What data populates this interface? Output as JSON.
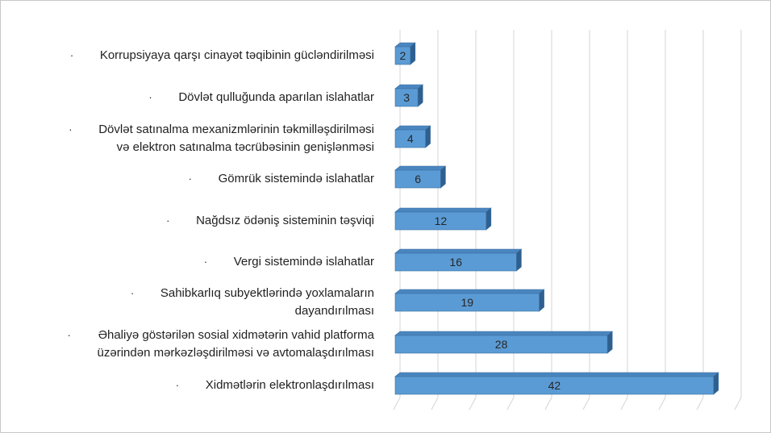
{
  "chart_data": {
    "type": "bar",
    "orientation": "horizontal",
    "style": "3d-clustered",
    "categories": [
      "Korrupsiyaya qarşı cinayət təqibinin gücləndirilməsi",
      "Dövlət qulluğunda aparılan islahatlar",
      "Dövlət satınalma mexanizmlərinin təkmilləşdirilməsi və elektron satınalma təcrübəsinin genişlənməsi",
      "Gömrük sistemində islahatlar",
      "Nağdsız ödəniş sisteminin təşviqi",
      "Vergi sistemində islahatlar",
      "Sahibkarlıq subyektlərində yoxlamaların dayandırılması",
      "Əhaliyə göstərilən sosial xidmətərin vahid platforma üzərindən mərkəzləşdirilməsi və avtomalaşdırılması",
      "Xidmətlərin elektronlaşdırılması"
    ],
    "label_lines": [
      [
        "Korrupsiyaya qarşı cinayət təqibinin gücləndirilməsi"
      ],
      [
        "Dövlət qulluğunda aparılan islahatlar"
      ],
      [
        "Dövlət satınalma mexanizmlərinin təkmilləşdirilməsi",
        "və elektron satınalma təcrübəsinin genişlənməsi"
      ],
      [
        "Gömrük sistemində islahatlar"
      ],
      [
        "Nağdsız ödəniş sisteminin təşviqi"
      ],
      [
        "Vergi sistemində islahatlar"
      ],
      [
        "Sahibkarlıq subyektlərində yoxlamaların",
        "dayandırılması"
      ],
      [
        "Əhaliyə göstərilən sosial xidmətərin vahid platforma",
        "üzərindən mərkəzləşdirilməsi və avtomalaşdırılması"
      ],
      [
        "Xidmətlərin elektronlaşdırılması"
      ]
    ],
    "values": [
      2,
      3,
      4,
      6,
      12,
      16,
      19,
      28,
      42
    ],
    "data_labels": [
      "2",
      "3",
      "4",
      "6",
      "12",
      "16",
      "19",
      "28",
      "42"
    ],
    "xlim": [
      0,
      45
    ],
    "grid": true,
    "legend": "none",
    "bullet_glyph": "·",
    "colors": {
      "bar_front": "#5b9bd5",
      "bar_top": "#4a86c0",
      "bar_side": "#2f5f8f",
      "bar_edge": "#3a6f9f",
      "grid": "#d4d4d4",
      "label_text": "#1f1f1f",
      "value_text": "#262626"
    }
  }
}
